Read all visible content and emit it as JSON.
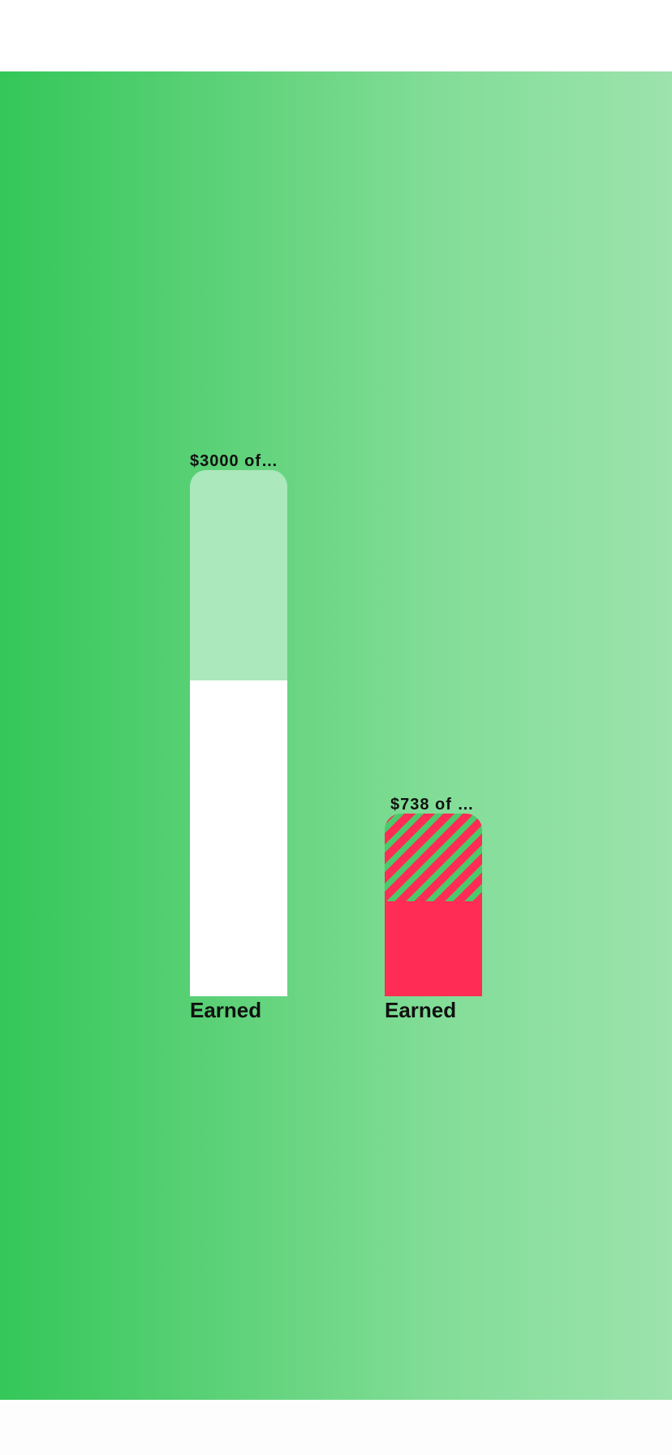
{
  "colors": {
    "gradient_start": "#34c759",
    "gradient_end": "#9ce3ad",
    "bar1_track": "#abe8bb",
    "bar1_fill": "#ffffff",
    "bar2_fill": "#ff2d55",
    "bar2_stripe": "#4cc96a"
  },
  "bars": [
    {
      "value_text": "$3000 of…",
      "label": "Earned",
      "fill_fraction": 0.6
    },
    {
      "value_text": "$738 of $…",
      "label": "Earned",
      "fill_fraction": 0.52
    }
  ]
}
